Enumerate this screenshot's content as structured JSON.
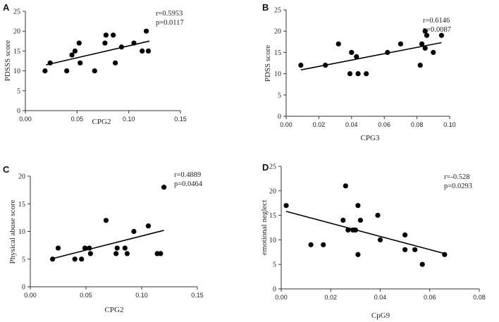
{
  "chart_data": [
    {
      "panel": "A",
      "type": "scatter",
      "xlabel": "CPG2",
      "ylabel": "PDSSS score",
      "xlim": [
        0,
        0.15
      ],
      "ylim": [
        0,
        25
      ],
      "xticks": [
        "0.00",
        "0.05",
        "0.10",
        "0.15"
      ],
      "yticks": [
        "0",
        "5",
        "10",
        "15",
        "20",
        "25"
      ],
      "stats": [
        "r=0.5953",
        "p=0.0117"
      ],
      "x": [
        0.019,
        0.024,
        0.04,
        0.045,
        0.048,
        0.052,
        0.053,
        0.067,
        0.077,
        0.078,
        0.085,
        0.087,
        0.093,
        0.105,
        0.113,
        0.117,
        0.119
      ],
      "y": [
        10,
        12,
        10,
        14,
        15,
        17,
        12,
        10,
        17,
        19,
        19,
        12,
        16,
        17,
        15,
        20,
        15
      ],
      "fit": {
        "x": [
          0.02,
          0.12
        ],
        "y": [
          11.5,
          17.5
        ]
      }
    },
    {
      "panel": "B",
      "type": "scatter",
      "xlabel": "CPG3",
      "ylabel": "PDSS score",
      "xlim": [
        0,
        0.1
      ],
      "ylim": [
        0,
        25
      ],
      "xticks": [
        "0.00",
        "0.02",
        "0.04",
        "0.06",
        "0.08",
        "0.10"
      ],
      "yticks": [
        "0",
        "5",
        "10",
        "15",
        "20",
        "25"
      ],
      "stats": [
        "r=0.6146",
        "p=0.0087"
      ],
      "x": [
        0.009,
        0.024,
        0.032,
        0.039,
        0.04,
        0.043,
        0.044,
        0.049,
        0.062,
        0.07,
        0.082,
        0.083,
        0.085,
        0.085,
        0.086,
        0.09,
        0.095
      ],
      "y": [
        12,
        12,
        17,
        10,
        15,
        14,
        10,
        10,
        15,
        17,
        12,
        17,
        16,
        20,
        19,
        15,
        19
      ],
      "fit": {
        "x": [
          0.009,
          0.095
        ],
        "y": [
          10.9,
          17.3
        ]
      }
    },
    {
      "panel": "C",
      "type": "scatter",
      "xlabel": "CPG2",
      "ylabel": "Physical abuse score",
      "xlim": [
        0,
        0.15
      ],
      "ylim": [
        0,
        20
      ],
      "xticks": [
        "0.00",
        "0.05",
        "0.10",
        "0.15"
      ],
      "yticks": [
        "0",
        "5",
        "10",
        "15",
        "20"
      ],
      "stats": [
        "r=0.4889",
        "p=0.0464"
      ],
      "x": [
        0.02,
        0.025,
        0.04,
        0.046,
        0.049,
        0.053,
        0.054,
        0.068,
        0.077,
        0.078,
        0.085,
        0.087,
        0.093,
        0.106,
        0.114,
        0.117,
        0.12
      ],
      "y": [
        5,
        7,
        5,
        5,
        7,
        7,
        6,
        12,
        6,
        7,
        7,
        6,
        10,
        11,
        6,
        6,
        18
      ],
      "fit": {
        "x": [
          0.02,
          0.12
        ],
        "y": [
          5.1,
          10.2
        ]
      }
    },
    {
      "panel": "D",
      "type": "scatter",
      "xlabel": "CpG9",
      "ylabel": "emotional neglect",
      "xlim": [
        0,
        0.08
      ],
      "ylim": [
        0,
        25
      ],
      "xticks": [
        "0.00",
        "0.02",
        "0.04",
        "0.06",
        "0.08"
      ],
      "yticks": [
        "0",
        "5",
        "10",
        "15",
        "20",
        "25"
      ],
      "stats": [
        "r=-0.528",
        "p=0.0293"
      ],
      "x": [
        0.002,
        0.012,
        0.017,
        0.025,
        0.026,
        0.027,
        0.029,
        0.03,
        0.031,
        0.031,
        0.032,
        0.039,
        0.04,
        0.05,
        0.05,
        0.054,
        0.057,
        0.066
      ],
      "y": [
        17,
        9,
        9,
        14,
        21,
        12,
        12,
        12,
        7,
        17,
        14,
        15,
        10,
        8,
        11,
        8,
        5,
        7
      ],
      "fit": {
        "x": [
          0.002,
          0.066
        ],
        "y": [
          15.8,
          7.2
        ]
      }
    }
  ]
}
